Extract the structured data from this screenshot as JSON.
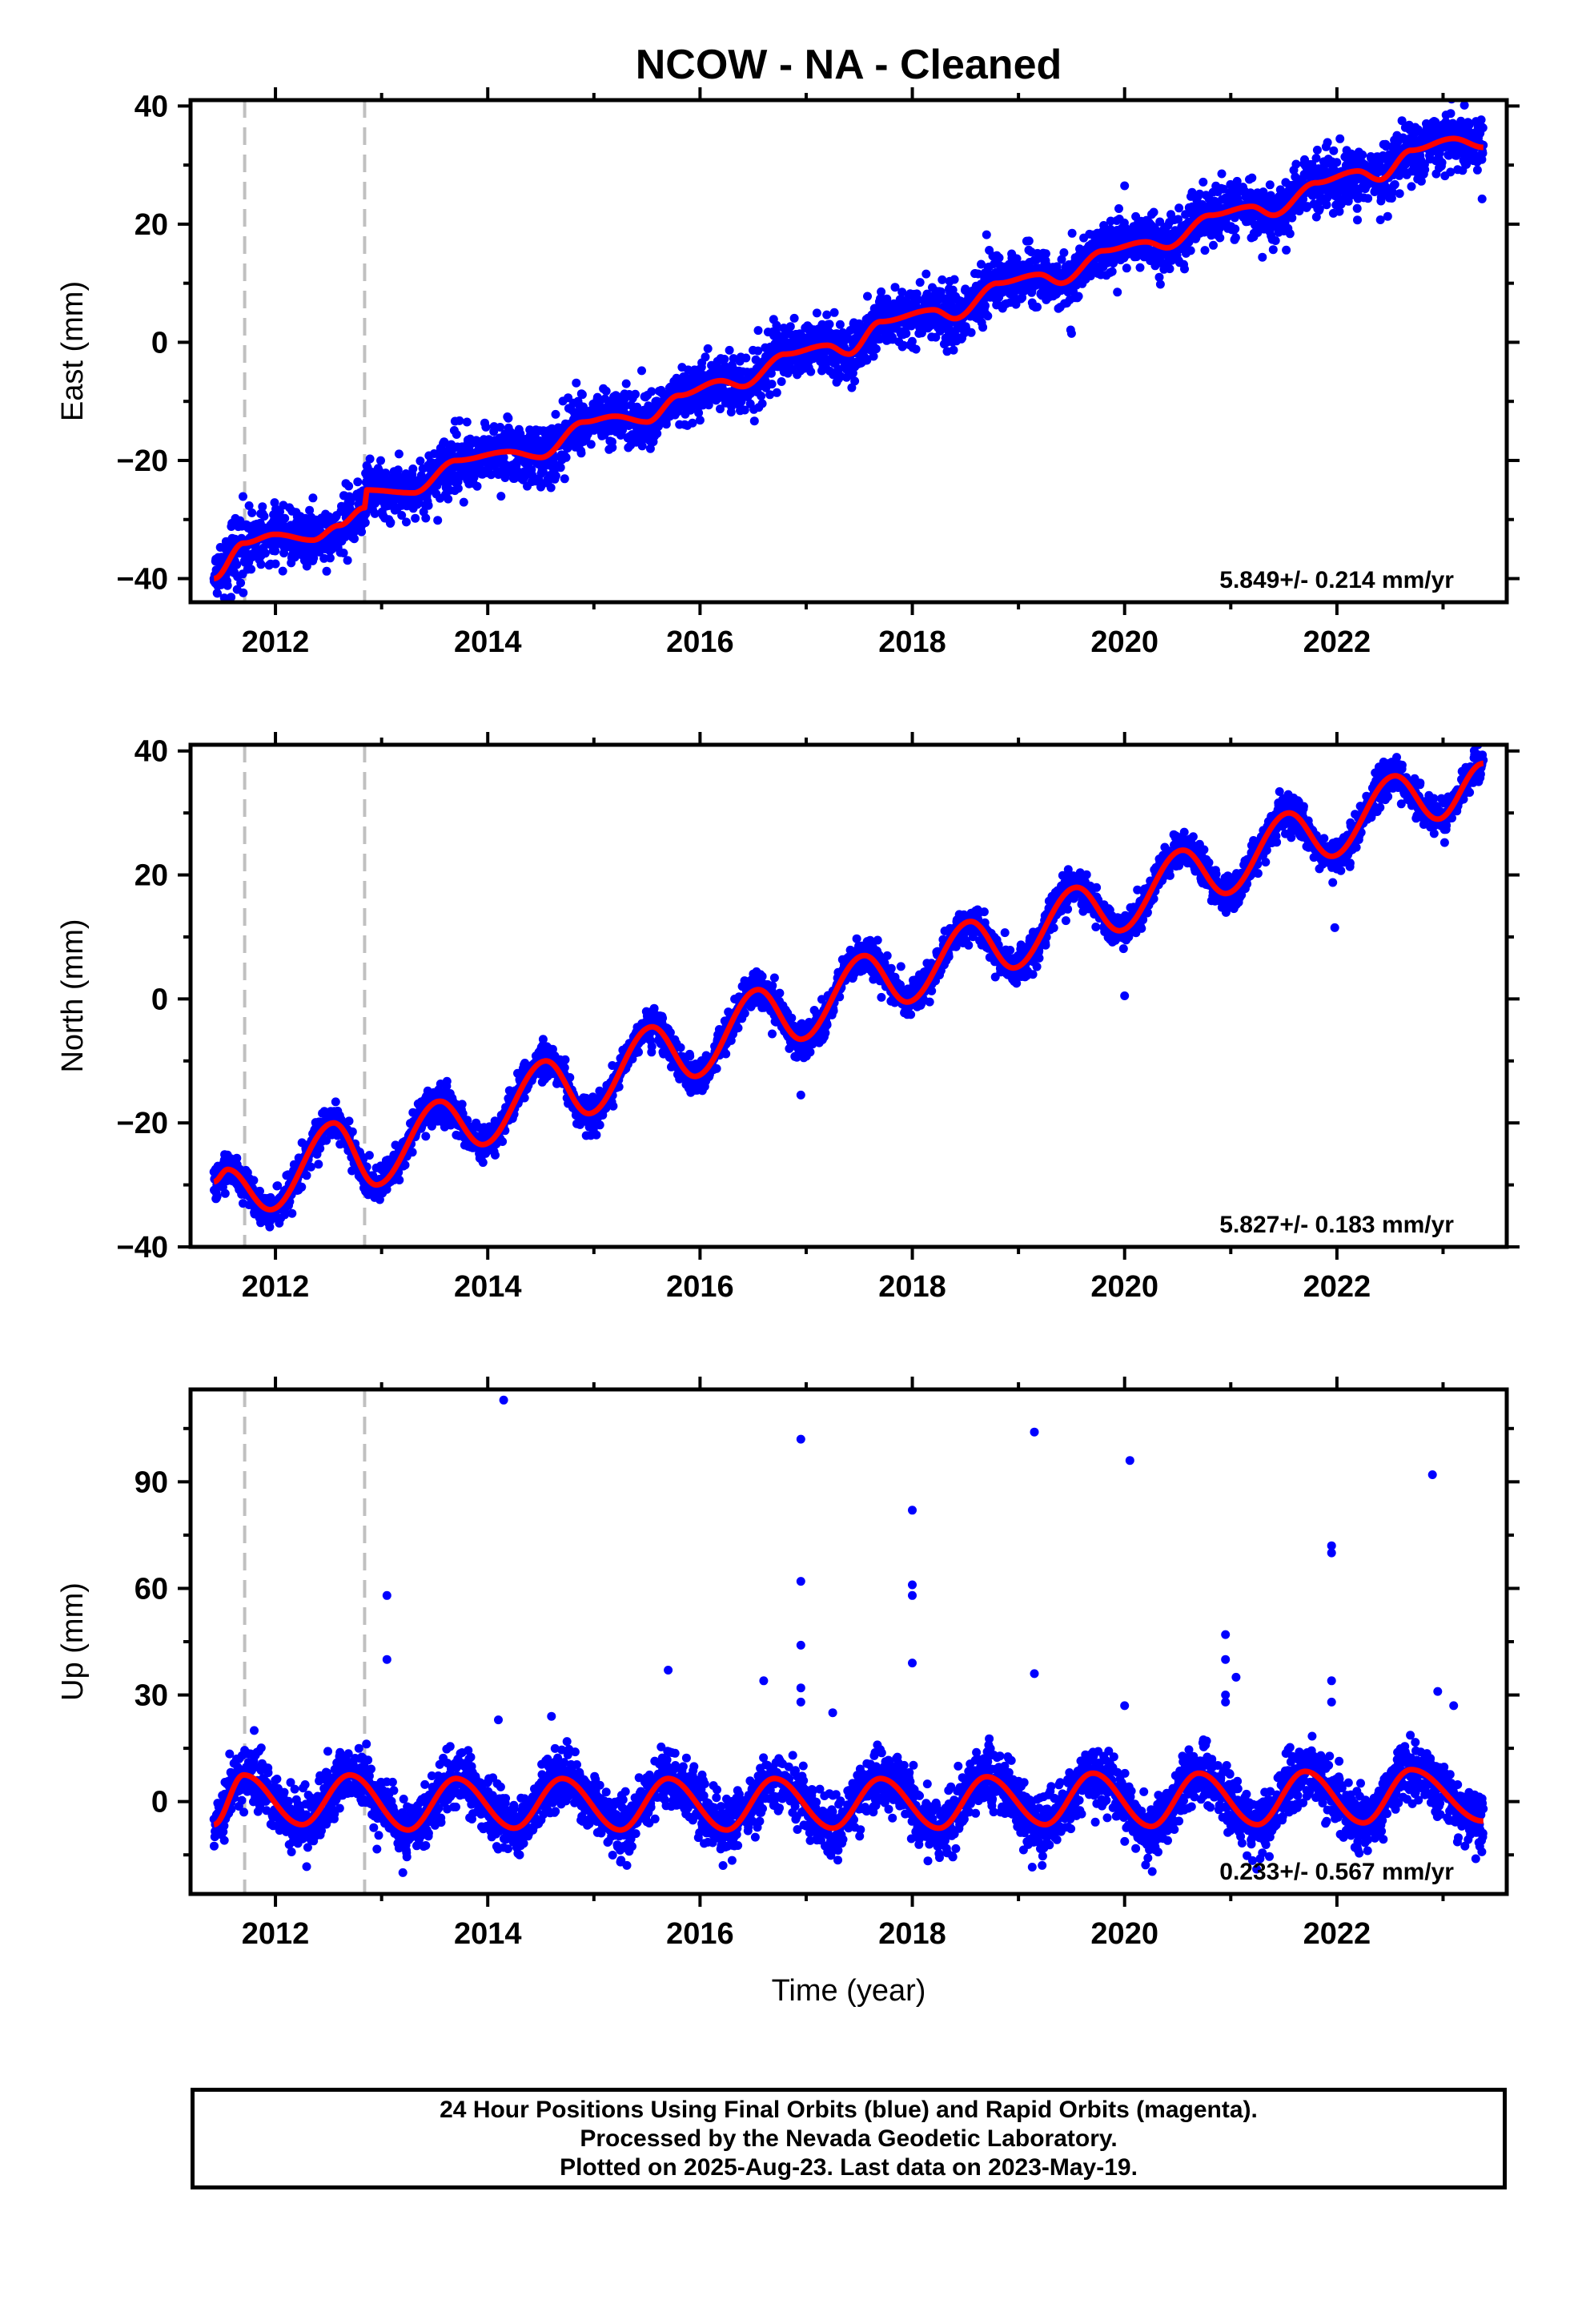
{
  "title": "NCOW  - NA - Cleaned",
  "chart_data": [
    {
      "type": "scatter",
      "component": "East",
      "ylabel": "East (mm)",
      "xlabel": "",
      "xlim": [
        2011.2,
        2023.6
      ],
      "ylim": [
        -44,
        41
      ],
      "yticks": [
        -40,
        -20,
        0,
        20,
        40
      ],
      "xticks": [
        2012,
        2014,
        2016,
        2018,
        2020,
        2022
      ],
      "rate_text": "5.849+/- 0.214 mm/yr",
      "rate": 5.849,
      "seasonal_amplitude": 1.8,
      "seasonal_phase_peak": 0.2,
      "scatter_sd": 2.4,
      "data_start": 2011.42,
      "data_end": 2023.38,
      "offsets": [
        {
          "year": 2012.85,
          "size": 3.5
        }
      ],
      "model_points": [
        [
          2011.42,
          -40
        ],
        [
          2011.7,
          -34
        ],
        [
          2012.0,
          -32.5
        ],
        [
          2012.35,
          -33.5
        ],
        [
          2012.6,
          -31
        ],
        [
          2012.84,
          -28
        ],
        [
          2012.86,
          -25
        ],
        [
          2013.3,
          -25.5
        ],
        [
          2013.7,
          -20
        ],
        [
          2014.2,
          -18.5
        ],
        [
          2014.5,
          -19.5
        ],
        [
          2014.9,
          -13.5
        ],
        [
          2015.2,
          -12.5
        ],
        [
          2015.5,
          -13.5
        ],
        [
          2015.8,
          -9
        ],
        [
          2016.2,
          -6.5
        ],
        [
          2016.4,
          -7.5
        ],
        [
          2016.8,
          -2
        ],
        [
          2017.2,
          -0.5
        ],
        [
          2017.4,
          -2
        ],
        [
          2017.7,
          3.5
        ],
        [
          2018.2,
          5.5
        ],
        [
          2018.4,
          4
        ],
        [
          2018.8,
          10
        ],
        [
          2019.2,
          11.5
        ],
        [
          2019.4,
          10
        ],
        [
          2019.8,
          15.5
        ],
        [
          2020.2,
          17
        ],
        [
          2020.4,
          16
        ],
        [
          2020.8,
          21.5
        ],
        [
          2021.2,
          23
        ],
        [
          2021.4,
          21.5
        ],
        [
          2021.8,
          27
        ],
        [
          2022.2,
          29
        ],
        [
          2022.4,
          27.5
        ],
        [
          2022.7,
          32.5
        ],
        [
          2023.1,
          34.5
        ],
        [
          2023.38,
          33
        ]
      ],
      "outliers": [
        [
          2020.0,
          26.5
        ],
        [
          2017.3,
          -4.5
        ],
        [
          2019.5,
          1.5
        ]
      ],
      "event_lines": [
        2011.71,
        2012.84
      ]
    },
    {
      "type": "scatter",
      "component": "North",
      "ylabel": "North (mm)",
      "xlabel": "",
      "xlim": [
        2011.2,
        2023.6
      ],
      "ylim": [
        -40,
        41
      ],
      "yticks": [
        -40,
        -20,
        0,
        20,
        40
      ],
      "xticks": [
        2012,
        2014,
        2016,
        2018,
        2020,
        2022
      ],
      "rate_text": "5.827+/- 0.183 mm/yr",
      "rate": 5.827,
      "seasonal_amplitude": 4.0,
      "seasonal_phase_peak": 0.55,
      "scatter_sd": 1.4,
      "data_start": 2011.42,
      "data_end": 2023.38,
      "offsets": [],
      "model_points": [
        [
          2011.42,
          -29.5
        ],
        [
          2011.55,
          -27.5
        ],
        [
          2011.95,
          -34
        ],
        [
          2012.55,
          -20
        ],
        [
          2012.95,
          -30
        ],
        [
          2013.55,
          -16.5
        ],
        [
          2013.95,
          -23.5
        ],
        [
          2014.55,
          -10
        ],
        [
          2014.95,
          -18.5
        ],
        [
          2015.55,
          -4.5
        ],
        [
          2015.95,
          -12.5
        ],
        [
          2016.55,
          1.5
        ],
        [
          2016.95,
          -6.5
        ],
        [
          2017.55,
          7
        ],
        [
          2017.95,
          -0.5
        ],
        [
          2018.55,
          12.5
        ],
        [
          2018.95,
          5
        ],
        [
          2019.55,
          18
        ],
        [
          2019.95,
          11
        ],
        [
          2020.55,
          24
        ],
        [
          2020.95,
          17
        ],
        [
          2021.55,
          30
        ],
        [
          2021.95,
          23
        ],
        [
          2022.55,
          36
        ],
        [
          2022.95,
          29
        ],
        [
          2023.38,
          38
        ]
      ],
      "outliers": [
        [
          2020.0,
          0.5
        ],
        [
          2021.98,
          11.5
        ],
        [
          2016.95,
          -15.5
        ]
      ],
      "event_lines": [
        2011.71,
        2012.84
      ]
    },
    {
      "type": "scatter",
      "component": "Up",
      "ylabel": "Up (mm)",
      "xlabel": "Time (year)",
      "xlim": [
        2011.2,
        2023.6
      ],
      "ylim": [
        -26,
        116
      ],
      "yticks": [
        0,
        30,
        60,
        90
      ],
      "xticks": [
        2012,
        2014,
        2016,
        2018,
        2020,
        2022
      ],
      "rate_text": "0.233+/- 0.567 mm/yr",
      "rate": 0.233,
      "seasonal_amplitude": 7.0,
      "seasonal_phase_peak": 0.7,
      "scatter_sd": 4.0,
      "data_start": 2011.42,
      "data_end": 2023.38,
      "offsets": [],
      "model_points": [
        [
          2011.42,
          -6.5
        ],
        [
          2011.7,
          7.5
        ],
        [
          2012.25,
          -6.5
        ],
        [
          2012.7,
          7.5
        ],
        [
          2013.25,
          -8
        ],
        [
          2013.7,
          6.5
        ],
        [
          2014.25,
          -7.5
        ],
        [
          2014.7,
          6.5
        ],
        [
          2015.25,
          -8
        ],
        [
          2015.7,
          6.5
        ],
        [
          2016.25,
          -8
        ],
        [
          2016.7,
          6.5
        ],
        [
          2017.25,
          -7.5
        ],
        [
          2017.7,
          6.5
        ],
        [
          2018.25,
          -7.5
        ],
        [
          2018.7,
          7
        ],
        [
          2019.25,
          -6.5
        ],
        [
          2019.7,
          8
        ],
        [
          2020.25,
          -7
        ],
        [
          2020.7,
          8
        ],
        [
          2021.25,
          -6.5
        ],
        [
          2021.7,
          8.5
        ],
        [
          2022.25,
          -6
        ],
        [
          2022.7,
          9
        ],
        [
          2023.38,
          -5.5
        ]
      ],
      "outliers": [
        [
          2014.15,
          113
        ],
        [
          2016.95,
          102
        ],
        [
          2018.0,
          82
        ],
        [
          2018.0,
          61
        ],
        [
          2018.0,
          58
        ],
        [
          2018.0,
          39
        ],
        [
          2019.15,
          104
        ],
        [
          2020.05,
          96
        ],
        [
          2022.9,
          92
        ],
        [
          2021.95,
          72
        ],
        [
          2021.95,
          70
        ],
        [
          2020.95,
          47
        ],
        [
          2020.95,
          40
        ],
        [
          2020.95,
          30
        ],
        [
          2020.95,
          28
        ],
        [
          2021.05,
          35
        ],
        [
          2019.15,
          36
        ],
        [
          2020.0,
          27
        ],
        [
          2016.95,
          62
        ],
        [
          2016.95,
          44
        ],
        [
          2016.95,
          32
        ],
        [
          2016.95,
          28
        ],
        [
          2013.05,
          58
        ],
        [
          2013.05,
          40
        ],
        [
          2015.7,
          37
        ],
        [
          2016.6,
          34
        ],
        [
          2017.25,
          25
        ],
        [
          2022.95,
          31
        ],
        [
          2023.1,
          27
        ],
        [
          2021.95,
          34
        ],
        [
          2021.95,
          28
        ],
        [
          2014.1,
          23
        ],
        [
          2014.6,
          24
        ],
        [
          2013.2,
          -20
        ],
        [
          2011.8,
          20
        ],
        [
          2015.25,
          -17
        ]
      ],
      "event_lines": [
        2011.71,
        2012.84
      ]
    }
  ],
  "caption": {
    "line1": "24 Hour Positions Using Final Orbits (blue) and Rapid Orbits (magenta).",
    "line2": "Processed by the Nevada Geodetic Laboratory.",
    "line3": "Plotted on 2025-Aug-23. Last data on 2023-May-19."
  },
  "colors": {
    "points": "#0000ff",
    "model": "#ff0000",
    "event_line": "#c0c0c0",
    "frame": "#000000"
  }
}
